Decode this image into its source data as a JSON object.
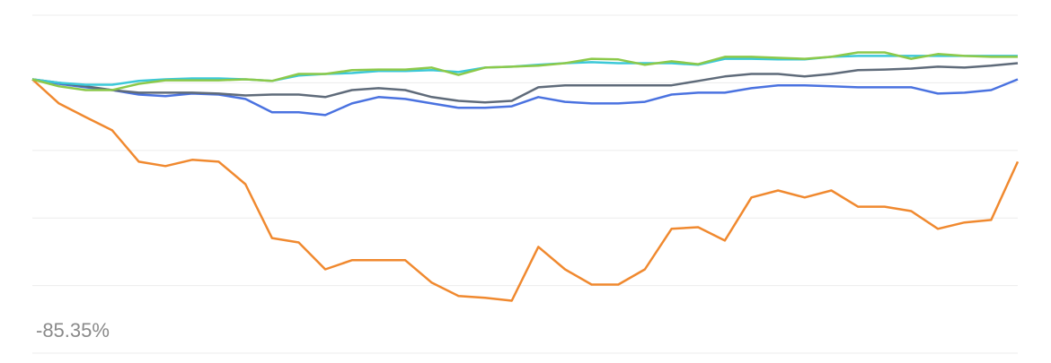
{
  "chart_data": {
    "type": "line",
    "categories": [
      null,
      null,
      null,
      null,
      null,
      null,
      null,
      null,
      null,
      null,
      null,
      null,
      null,
      null,
      null,
      null,
      null,
      null,
      null,
      null,
      null,
      null,
      null,
      null,
      null,
      null,
      null,
      null,
      null,
      null,
      null,
      null,
      null,
      null,
      null,
      null,
      null,
      null
    ],
    "series": [
      {
        "color": "#f0892f",
        "values": [
          1.1,
          -6.5,
          -10.8,
          -15.0,
          -24.9,
          -26.3,
          -24.3,
          -24.9,
          -32.0,
          -49.0,
          -50.4,
          -58.9,
          -56.0,
          -56.0,
          -56.0,
          -63.1,
          -67.3,
          -67.9,
          -68.8,
          -51.8,
          -58.9,
          -63.7,
          -63.7,
          -58.9,
          -46.1,
          -45.6,
          -49.8,
          -36.2,
          -34.0,
          -36.2,
          -34.0,
          -39.1,
          -39.1,
          -40.5,
          -46.1,
          -44.1,
          -43.3,
          -24.9
        ]
      },
      {
        "color": "#4a72e0",
        "values": [
          1.1,
          -0.3,
          -1.4,
          -2.3,
          -3.7,
          -4.2,
          -3.4,
          -3.7,
          -5.1,
          -9.3,
          -9.3,
          -10.2,
          -6.5,
          -4.5,
          -5.1,
          -6.5,
          -7.9,
          -7.9,
          -7.4,
          -4.5,
          -6.0,
          -6.5,
          -6.5,
          -6.0,
          -3.7,
          -3.1,
          -3.1,
          -1.7,
          -0.8,
          -0.8,
          -1.1,
          -1.4,
          -1.4,
          -1.4,
          -3.4,
          -3.1,
          -2.3,
          1.1
        ]
      },
      {
        "color": "#5f6b7a",
        "values": [
          1.1,
          0,
          -1.1,
          -2.3,
          -3.1,
          -3.1,
          -3.1,
          -3.4,
          -4.0,
          -3.7,
          -3.7,
          -4.5,
          -2.3,
          -1.7,
          -2.3,
          -4.5,
          -5.7,
          -6.2,
          -5.7,
          -1.4,
          -0.8,
          -0.8,
          -0.8,
          -0.8,
          -0.8,
          0.6,
          2.0,
          2.8,
          2.8,
          2.0,
          2.8,
          4.0,
          4.2,
          4.5,
          5.1,
          4.8,
          5.4,
          6.2
        ]
      },
      {
        "color": "#3cc8d8",
        "values": [
          1.1,
          0,
          -0.6,
          -0.6,
          0.6,
          1.1,
          1.4,
          1.4,
          1.1,
          0.6,
          2.3,
          2.8,
          3.1,
          3.7,
          3.7,
          4.0,
          3.4,
          4.8,
          5.1,
          5.7,
          6.2,
          6.5,
          6.2,
          6.2,
          6.2,
          5.7,
          7.6,
          7.6,
          7.4,
          7.4,
          8.2,
          8.5,
          8.5,
          8.5,
          8.5,
          8.5,
          8.5,
          8.5
        ]
      },
      {
        "color": "#8cc94a",
        "values": [
          1.1,
          -1.1,
          -2.3,
          -2.3,
          -0.3,
          0.8,
          0.8,
          0.8,
          1.1,
          0.6,
          2.8,
          2.8,
          4.0,
          4.2,
          4.2,
          4.8,
          2.5,
          4.8,
          5.1,
          5.4,
          6.2,
          7.6,
          7.4,
          5.7,
          6.8,
          5.9,
          8.2,
          8.2,
          7.9,
          7.6,
          8.2,
          9.6,
          9.6,
          7.6,
          9.1,
          8.5,
          8.2,
          8.2
        ]
      }
    ],
    "ylim": [
      -85.35,
      21.34
    ],
    "yticks": [
      {
        "value": -85.35,
        "label": "-85.35%"
      }
    ],
    "gridlines": [
      -85.35,
      -64.01,
      -42.68,
      -21.34,
      0,
      21.34
    ]
  }
}
